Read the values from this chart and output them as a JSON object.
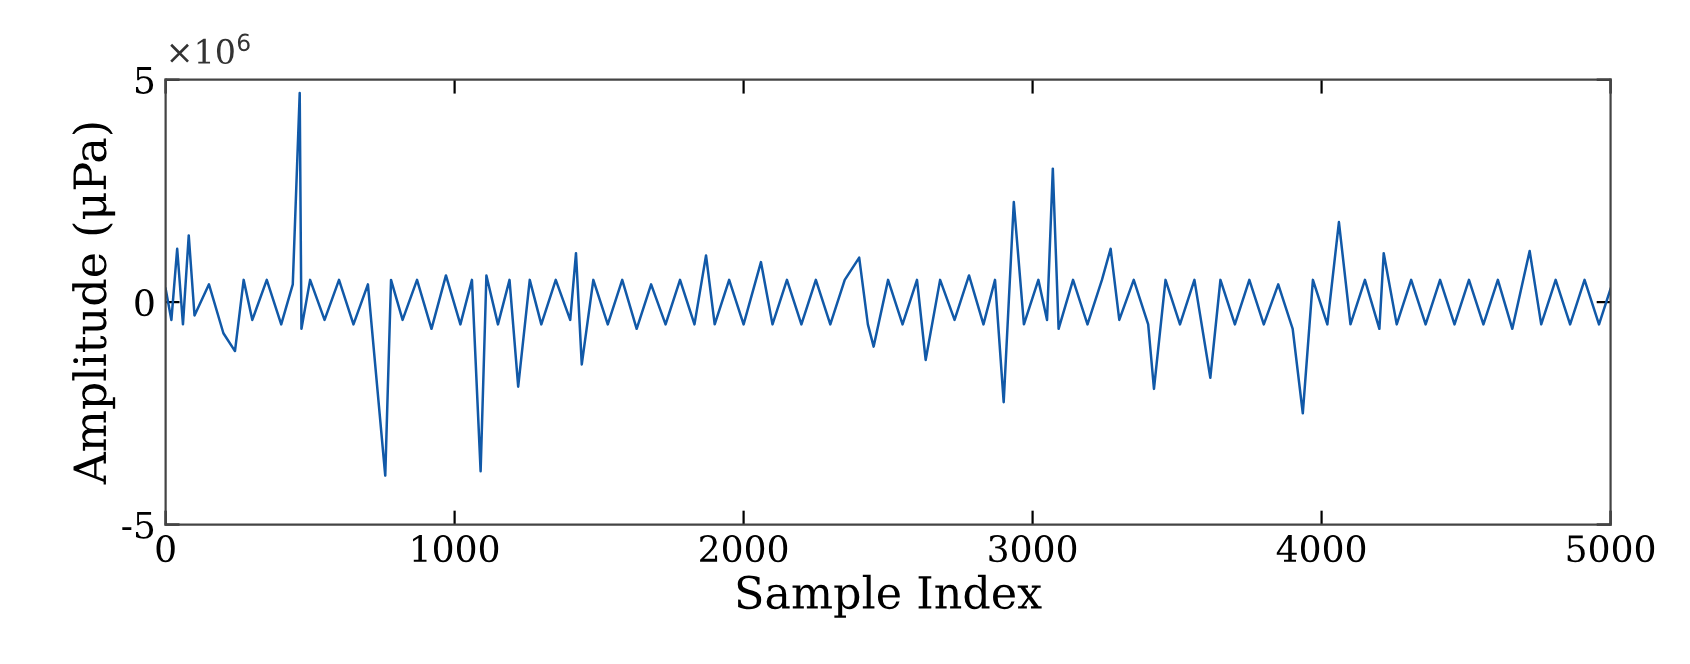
{
  "chart_data": {
    "type": "line",
    "xlabel": "Sample Index",
    "ylabel": "Amplitude (μPa)",
    "annotations": [
      "×10$^{6}$"
    ],
    "x": [
      0,
      20,
      40,
      60,
      80,
      100,
      150,
      200,
      240,
      270,
      300,
      350,
      400,
      440,
      464,
      470,
      500,
      550,
      600,
      650,
      700,
      760,
      780,
      820,
      870,
      920,
      970,
      1020,
      1060,
      1090,
      1110,
      1150,
      1190,
      1220,
      1260,
      1300,
      1350,
      1400,
      1420,
      1440,
      1480,
      1530,
      1580,
      1630,
      1680,
      1730,
      1780,
      1830,
      1870,
      1900,
      1950,
      2000,
      2060,
      2100,
      2150,
      2200,
      2250,
      2300,
      2350,
      2400,
      2430,
      2450,
      2500,
      2550,
      2600,
      2630,
      2680,
      2730,
      2780,
      2830,
      2870,
      2900,
      2935,
      2970,
      3020,
      3050,
      3070,
      3090,
      3140,
      3190,
      3240,
      3270,
      3300,
      3350,
      3400,
      3420,
      3460,
      3510,
      3560,
      3615,
      3650,
      3700,
      3750,
      3800,
      3850,
      3900,
      3935,
      3970,
      4020,
      4060,
      4100,
      4150,
      4200,
      4215,
      4260,
      4310,
      4360,
      4410,
      4460,
      4510,
      4560,
      4610,
      4660,
      4720,
      4760,
      4810,
      4860,
      4910,
      4960,
      5000
    ],
    "series": [
      {
        "color": "#1159a8",
        "values": [
          0.3,
          -0.4,
          1.2,
          -0.5,
          1.5,
          -0.3,
          0.4,
          -0.7,
          -1.1,
          0.5,
          -0.4,
          0.5,
          -0.5,
          0.4,
          4.7,
          -0.6,
          0.5,
          -0.4,
          0.5,
          -0.5,
          0.4,
          -3.9,
          0.5,
          -0.4,
          0.5,
          -0.6,
          0.6,
          -0.5,
          0.5,
          -3.8,
          0.6,
          -0.5,
          0.5,
          -1.9,
          0.5,
          -0.5,
          0.5,
          -0.4,
          1.1,
          -1.4,
          0.5,
          -0.5,
          0.5,
          -0.6,
          0.4,
          -0.5,
          0.5,
          -0.5,
          1.05,
          -0.5,
          0.5,
          -0.5,
          0.9,
          -0.5,
          0.5,
          -0.5,
          0.5,
          -0.5,
          0.5,
          1.0,
          -0.5,
          -1.0,
          0.5,
          -0.5,
          0.5,
          -1.3,
          0.5,
          -0.4,
          0.6,
          -0.5,
          0.5,
          -2.25,
          2.25,
          -0.5,
          0.5,
          -0.4,
          3.0,
          -0.6,
          0.5,
          -0.5,
          0.5,
          1.2,
          -0.4,
          0.5,
          -0.5,
          -1.95,
          0.5,
          -0.5,
          0.5,
          -1.7,
          0.5,
          -0.5,
          0.5,
          -0.5,
          0.4,
          -0.6,
          -2.5,
          0.5,
          -0.5,
          1.8,
          -0.5,
          0.5,
          -0.6,
          1.1,
          -0.5,
          0.5,
          -0.5,
          0.5,
          -0.5,
          0.5,
          -0.5,
          0.5,
          -0.6,
          1.15,
          -0.5,
          0.5,
          -0.5,
          0.5,
          -0.5,
          0.3
        ]
      }
    ],
    "xlim": [
      0,
      5000
    ],
    "xticks": [
      0,
      1000,
      2000,
      3000,
      4000,
      5000
    ],
    "ylim": [
      -5,
      5
    ],
    "yticks": [
      -5,
      0,
      5
    ],
    "grid": false,
    "legend": false
  }
}
